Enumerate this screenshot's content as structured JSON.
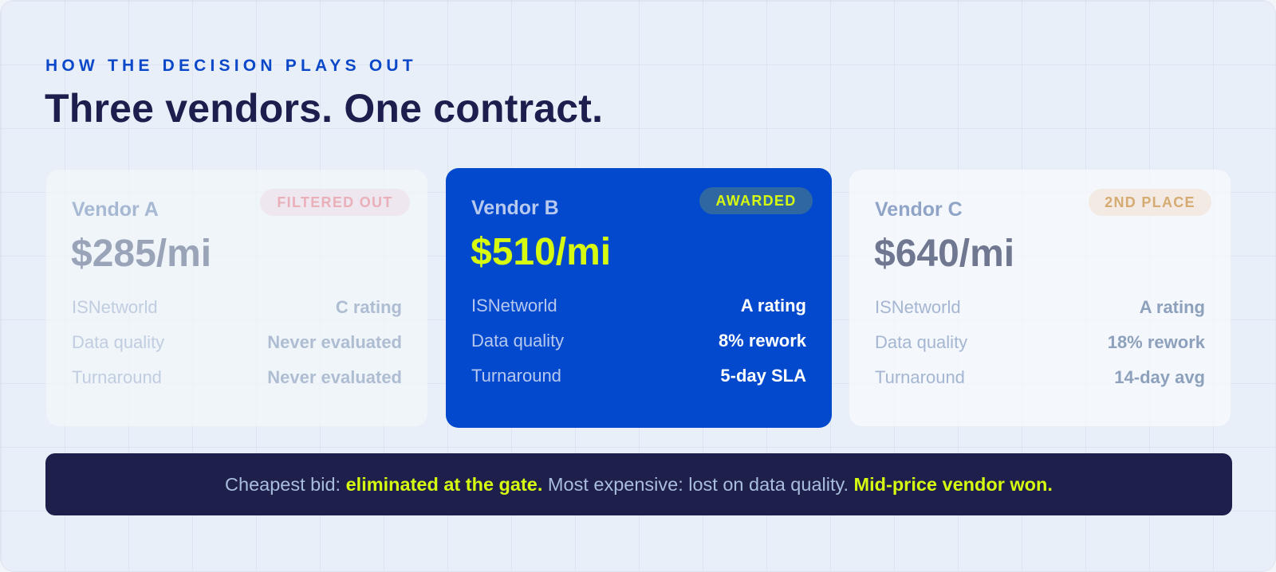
{
  "header": {
    "eyebrow": "HOW THE DECISION PLAYS OUT",
    "title": "Three vendors. One contract."
  },
  "vendors": [
    {
      "name": "Vendor A",
      "price": "$285/mi",
      "badge": "FILTERED OUT",
      "rows": [
        {
          "label": "ISNetworld",
          "value": "C rating"
        },
        {
          "label": "Data quality",
          "value": "Never evaluated"
        },
        {
          "label": "Turnaround",
          "value": "Never evaluated"
        }
      ]
    },
    {
      "name": "Vendor B",
      "price": "$510/mi",
      "badge": "AWARDED",
      "rows": [
        {
          "label": "ISNetworld",
          "value": "A rating"
        },
        {
          "label": "Data quality",
          "value": "8% rework"
        },
        {
          "label": "Turnaround",
          "value": "5-day SLA"
        }
      ]
    },
    {
      "name": "Vendor C",
      "price": "$640/mi",
      "badge": "2ND PLACE",
      "rows": [
        {
          "label": "ISNetworld",
          "value": "A rating"
        },
        {
          "label": "Data quality",
          "value": "18% rework"
        },
        {
          "label": "Turnaround",
          "value": "14-day avg"
        }
      ]
    }
  ],
  "summary": {
    "part1": "Cheapest bid: ",
    "part2": "eliminated at the gate.",
    "part3": " Most expensive: lost on data quality. ",
    "part4": "Mid-price vendor won."
  },
  "colors": {
    "accent_blue": "#0249cd",
    "highlight_lime": "#d6fb10",
    "navy": "#1e1f4a",
    "title_navy": "#1c1f4d"
  }
}
